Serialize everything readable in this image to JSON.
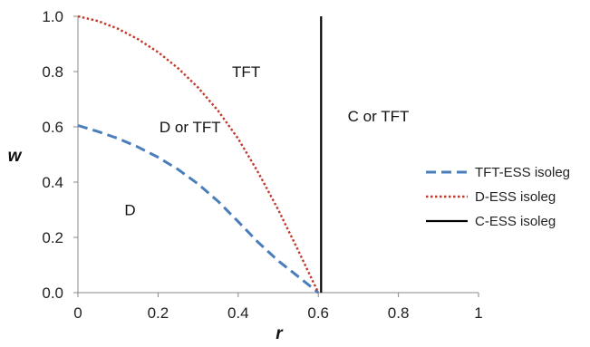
{
  "chart_data": {
    "type": "line",
    "xlabel": "r",
    "ylabel": "w",
    "xlim": [
      0,
      1
    ],
    "ylim": [
      0,
      1.0
    ],
    "x_ticks": [
      "0",
      "0.2",
      "0.4",
      "0.6",
      "0.8",
      "1"
    ],
    "y_ticks": [
      "0.0",
      "0.2",
      "0.4",
      "0.6",
      "0.8",
      "1.0"
    ],
    "grid": false,
    "legend_position": "right",
    "series": [
      {
        "name": "TFT-ESS isoleg",
        "style": "dashed",
        "color": "#4a7ebb",
        "points": [
          [
            0,
            0.605
          ],
          [
            0.05,
            0.583
          ],
          [
            0.1,
            0.558
          ],
          [
            0.15,
            0.527
          ],
          [
            0.2,
            0.49
          ],
          [
            0.25,
            0.446
          ],
          [
            0.3,
            0.393
          ],
          [
            0.35,
            0.33
          ],
          [
            0.4,
            0.257
          ],
          [
            0.45,
            0.182
          ],
          [
            0.5,
            0.115
          ],
          [
            0.55,
            0.058
          ],
          [
            0.6,
            0.0
          ]
        ]
      },
      {
        "name": "D-ESS isoleg",
        "style": "dotted",
        "color": "#c0392b",
        "points": [
          [
            0,
            1.0
          ],
          [
            0.05,
            0.983
          ],
          [
            0.1,
            0.955
          ],
          [
            0.15,
            0.917
          ],
          [
            0.2,
            0.87
          ],
          [
            0.25,
            0.812
          ],
          [
            0.3,
            0.742
          ],
          [
            0.35,
            0.658
          ],
          [
            0.4,
            0.557
          ],
          [
            0.45,
            0.435
          ],
          [
            0.5,
            0.3
          ],
          [
            0.55,
            0.152
          ],
          [
            0.6,
            0.0
          ]
        ]
      },
      {
        "name": "C-ESS isoleg",
        "style": "solid",
        "color": "#000000",
        "points": [
          [
            0.607,
            0.0
          ],
          [
            0.607,
            1.0
          ]
        ]
      }
    ],
    "annotations": [
      {
        "text": "TFT",
        "x": 0.42,
        "y": 0.8
      },
      {
        "text": "D or TFT",
        "x": 0.28,
        "y": 0.6
      },
      {
        "text": "C or TFT",
        "x": 0.75,
        "y": 0.64
      },
      {
        "text": "D",
        "x": 0.13,
        "y": 0.3
      }
    ]
  }
}
